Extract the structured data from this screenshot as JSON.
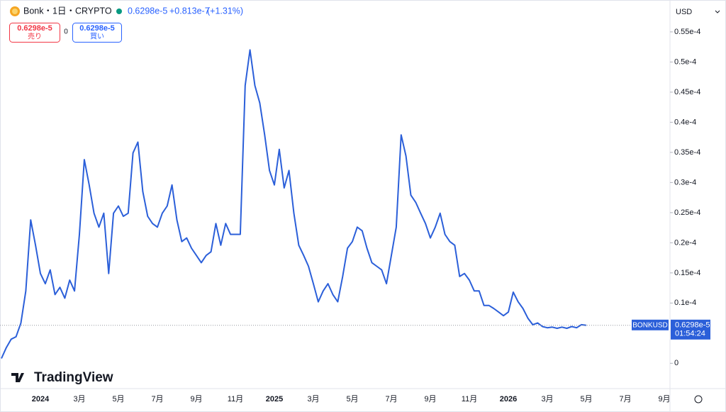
{
  "header": {
    "symbol": "Bonk・1日・CRYPTO",
    "price": "0.6298e-5",
    "change": "+0.813e-7",
    "change_pct": "(+1.31%)",
    "sell_price": "0.6298e-5",
    "sell": "売り",
    "spread": "0",
    "buy_price": "0.6298e-5",
    "buy": "買い",
    "currency": "USD",
    "brand": "TradingView"
  },
  "price_tag": {
    "symbol": "BONKUSD",
    "price": "0.6298e-5",
    "countdown": "01:54:24"
  },
  "chart_data": {
    "type": "line",
    "color": "#2b5fd9",
    "grid": false,
    "categories": [
      null,
      null,
      null,
      null,
      null,
      null,
      null,
      null,
      "2024",
      null,
      null,
      null,
      null,
      null,
      null,
      null,
      "3月",
      null,
      null,
      null,
      null,
      null,
      null,
      null,
      "5月",
      null,
      null,
      null,
      null,
      null,
      null,
      null,
      "7月",
      null,
      null,
      null,
      null,
      null,
      null,
      null,
      "9月",
      null,
      null,
      null,
      null,
      null,
      null,
      null,
      "11月",
      null,
      null,
      null,
      null,
      null,
      null,
      null,
      "2025",
      null,
      null,
      null,
      null,
      null,
      null,
      null,
      "3月",
      null,
      null,
      null,
      null,
      null,
      null,
      null,
      "5月",
      null,
      null,
      null,
      null,
      null,
      null,
      null,
      "7月",
      null,
      null,
      null,
      null,
      null,
      null,
      null,
      "9月",
      null,
      null,
      null,
      null,
      null,
      null,
      null,
      "11月",
      null,
      null,
      null,
      null,
      null,
      null,
      null,
      "2026",
      null,
      null,
      null,
      null,
      null,
      null,
      null,
      "3月",
      null,
      null,
      null,
      null,
      null,
      null,
      null,
      "5月",
      null,
      null,
      null,
      null,
      null,
      null,
      null,
      "7月",
      null,
      null,
      null,
      null,
      null,
      null,
      null,
      "9月",
      null
    ],
    "values": [
      8e-07,
      2.6e-06,
      4e-06,
      4.4e-06,
      6.7e-06,
      1.2e-05,
      2.38e-05,
      1.96e-05,
      1.49e-05,
      1.32e-05,
      1.55e-05,
      1.14e-05,
      1.26e-05,
      1.08e-05,
      1.38e-05,
      1.2e-05,
      2.14e-05,
      3.38e-05,
      2.96e-05,
      2.49e-05,
      2.26e-05,
      2.49e-05,
      1.49e-05,
      2.49e-05,
      2.61e-05,
      2.44e-05,
      2.49e-05,
      3.49e-05,
      3.67e-05,
      2.85e-05,
      2.44e-05,
      2.32e-05,
      2.26e-05,
      2.49e-05,
      2.61e-05,
      2.96e-05,
      2.38e-05,
      2.02e-05,
      2.08e-05,
      1.91e-05,
      1.79e-05,
      1.67e-05,
      1.79e-05,
      1.85e-05,
      2.32e-05,
      1.96e-05,
      2.32e-05,
      2.14e-05,
      2.14e-05,
      2.14e-05,
      4.61e-05,
      5.2e-05,
      4.61e-05,
      4.32e-05,
      3.79e-05,
      3.2e-05,
      2.96e-05,
      3.55e-05,
      2.91e-05,
      3.2e-05,
      2.49e-05,
      1.96e-05,
      1.79e-05,
      1.61e-05,
      1.32e-05,
      1.02e-05,
      1.2e-05,
      1.32e-05,
      1.14e-05,
      1.02e-05,
      1.44e-05,
      1.91e-05,
      2.02e-05,
      2.26e-05,
      2.2e-05,
      1.91e-05,
      1.67e-05,
      1.61e-05,
      1.55e-05,
      1.32e-05,
      1.79e-05,
      2.26e-05,
      3.79e-05,
      3.44e-05,
      2.79e-05,
      2.67e-05,
      2.49e-05,
      2.32e-05,
      2.08e-05,
      2.26e-05,
      2.49e-05,
      2.14e-05,
      2.02e-05,
      1.96e-05,
      1.44e-05,
      1.49e-05,
      1.38e-05,
      1.2e-05,
      1.2e-05,
      9.6e-06,
      9.6e-06,
      9.1e-06,
      8.5e-06,
      7.9e-06,
      8.5e-06,
      1.18e-05,
      1.02e-05,
      9.1e-06,
      7.5e-06,
      6.4e-06,
      6.7e-06,
      6.1e-06,
      5.9e-06,
      6e-06,
      5.8e-06,
      6e-06,
      5.8e-06,
      6.1e-06,
      5.9e-06,
      6.4e-06,
      6.298e-06,
      null,
      null,
      null,
      null,
      null,
      null,
      null,
      null,
      null,
      null,
      null,
      null,
      null,
      null,
      null,
      null,
      null
    ],
    "ylim": [
      -4.2e-06,
      5.97e-05
    ],
    "yticks": [
      0,
      {
        "value": 1e-05,
        "label": "0.1e-4"
      },
      {
        "value": 1.5e-05,
        "label": "0.15e-4"
      },
      {
        "value": 2e-05,
        "label": "0.2e-4"
      },
      {
        "value": 2.5e-05,
        "label": "0.25e-4"
      },
      {
        "value": 3e-05,
        "label": "0.3e-4"
      },
      {
        "value": 3.5e-05,
        "label": "0.35e-4"
      },
      {
        "value": 4e-05,
        "label": "0.4e-4"
      },
      {
        "value": 4.5e-05,
        "label": "0.45e-4"
      },
      {
        "value": 5e-05,
        "label": "0.5e-4"
      },
      {
        "value": 5.5e-05,
        "label": "0.55e-4"
      }
    ]
  }
}
